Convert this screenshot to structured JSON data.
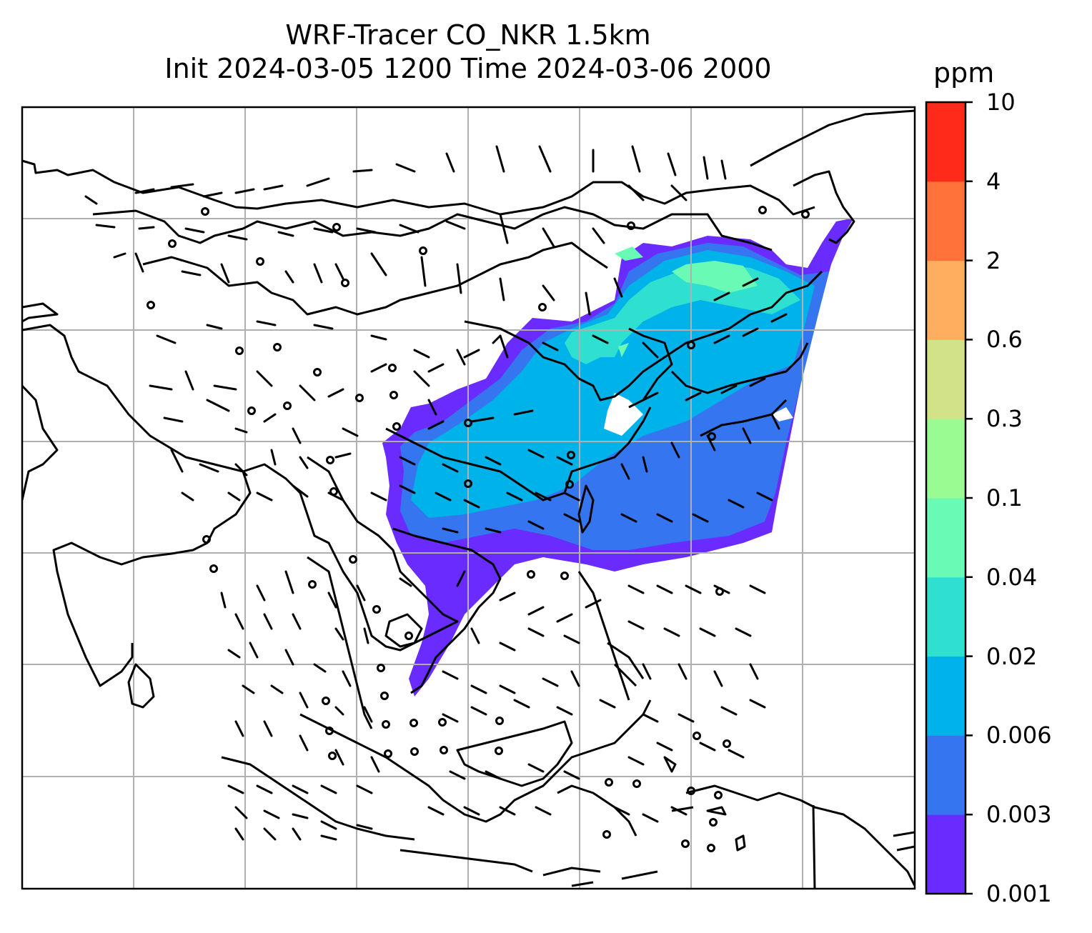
{
  "title": {
    "line1": "WRF-Tracer CO_NKR 1.5km",
    "line2": "Init 2024-03-05 1200 Time 2024-03-06 2000"
  },
  "colorbar": {
    "unit": "ppm",
    "levels": [
      "0.001",
      "0.003",
      "0.006",
      "0.02",
      "0.04",
      "0.1",
      "0.3",
      "0.6",
      "2",
      "4",
      "10"
    ],
    "colors": [
      "#6a2bff",
      "#3576f0",
      "#00b2ea",
      "#2fdfd0",
      "#69fbb6",
      "#9afb93",
      "#d2e288",
      "#ffae60",
      "#ff733a",
      "#ff2a19"
    ]
  },
  "map": {
    "background": "#ffffff",
    "gridlines": true,
    "grid_color": "#b0b0b0",
    "coastline_color": "#000000",
    "wind_barbs": true,
    "tracer_field_levels": [
      "0.001-0.003",
      "0.003-0.006",
      "0.006-0.02",
      "0.02-0.04",
      "0.04-0.1"
    ]
  }
}
